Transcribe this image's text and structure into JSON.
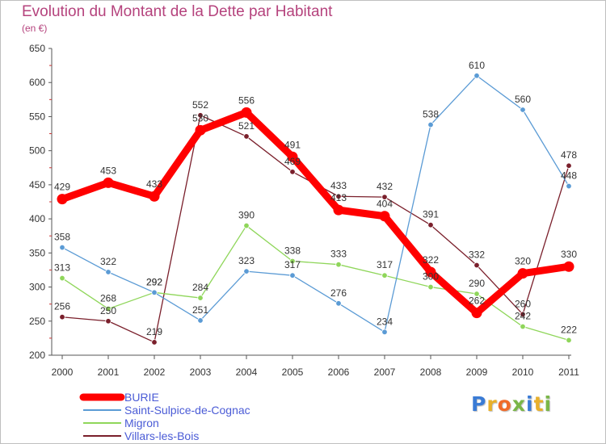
{
  "header": {
    "title": "Evolution du Montant de la Dette par Habitant",
    "subtitle": "(en €)"
  },
  "brand": {
    "name": "Proxiti",
    "letter_colors": [
      "#3a7bd5",
      "#e8b02b",
      "#f06b2a",
      "#7ab648",
      "#3a7bd5",
      "#e8b02b",
      "#7ab648"
    ]
  },
  "chart_data": {
    "type": "line",
    "title": "Evolution du Montant de la Dette par Habitant",
    "subtitle": "(en €)",
    "xlabel": "",
    "ylabel": "",
    "x": [
      "2000",
      "2001",
      "2002",
      "2003",
      "2004",
      "2005",
      "2006",
      "2007",
      "2008",
      "2009",
      "2010",
      "2011"
    ],
    "ylim": [
      200,
      650
    ],
    "yticks": [
      "200",
      "250",
      "300",
      "350",
      "400",
      "450",
      "500",
      "550",
      "600",
      "650"
    ],
    "grid": false,
    "legend_position": "bottom-left",
    "series": [
      {
        "name": "Villars-les-Bois",
        "color": "#7a1f2b",
        "values": [
          256,
          250,
          219,
          552,
          521,
          469,
          433,
          432,
          391,
          332,
          260,
          478
        ]
      },
      {
        "name": "Migron",
        "color": "#8fd65a",
        "values": [
          313,
          268,
          292,
          284,
          390,
          338,
          333,
          317,
          300,
          290,
          242,
          222
        ]
      },
      {
        "name": "Saint-Sulpice-de-Cognac",
        "color": "#5b9bd5",
        "values": [
          358,
          322,
          292,
          251,
          323,
          317,
          276,
          234,
          538,
          610,
          560,
          448
        ]
      },
      {
        "name": "BURIE",
        "color": "#ff0000",
        "values": [
          429,
          453,
          433,
          530,
          556,
          491,
          413,
          404,
          322,
          262,
          320,
          330
        ]
      }
    ],
    "legend": [
      "BURIE",
      "Saint-Sulpice-de-Cognac",
      "Migron",
      "Villars-les-Bois"
    ]
  }
}
